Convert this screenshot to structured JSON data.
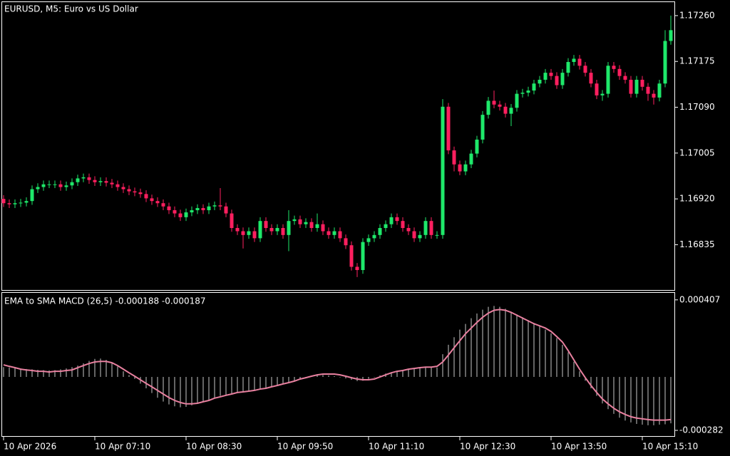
{
  "chart_data": [
    {
      "type": "candlestick",
      "title": "EURUSD, M5:  Euro vs US Dollar",
      "categories": [
        "10 Apr 2026",
        null,
        null,
        null,
        null,
        null,
        null,
        null,
        null,
        null,
        null,
        null,
        null,
        null,
        null,
        null,
        "10 Apr 07:10",
        null,
        null,
        null,
        null,
        null,
        null,
        null,
        null,
        null,
        null,
        null,
        null,
        null,
        null,
        null,
        "10 Apr 08:30",
        null,
        null,
        null,
        null,
        null,
        null,
        null,
        null,
        null,
        null,
        null,
        null,
        null,
        null,
        null,
        "10 Apr 09:50",
        null,
        null,
        null,
        null,
        null,
        null,
        null,
        null,
        null,
        null,
        null,
        null,
        null,
        null,
        null,
        "10 Apr 11:10",
        null,
        null,
        null,
        null,
        null,
        null,
        null,
        null,
        null,
        null,
        null,
        null,
        null,
        null,
        null,
        "10 Apr 12:30",
        null,
        null,
        null,
        null,
        null,
        null,
        null,
        null,
        null,
        null,
        null,
        null,
        null,
        null,
        null,
        "10 Apr 13:50",
        null,
        null,
        null,
        null,
        null,
        null,
        null,
        null,
        null,
        null,
        null,
        null,
        null,
        null,
        null,
        "10 Apr 15:10",
        null,
        null,
        null,
        null,
        null
      ],
      "open": [
        1.1692,
        1.16912,
        1.1691,
        1.16912,
        1.16913,
        1.16916,
        1.16938,
        1.16942,
        1.16947,
        1.16947,
        1.16947,
        1.16942,
        1.16945,
        1.16951,
        1.16958,
        1.1696,
        1.16955,
        1.16951,
        1.16953,
        1.1695,
        1.16947,
        1.16942,
        1.16938,
        1.16934,
        1.16932,
        1.16929,
        1.16921,
        1.16916,
        1.16912,
        1.16906,
        1.16899,
        1.16893,
        1.16886,
        1.16895,
        1.16899,
        1.16903,
        1.16899,
        1.16906,
        1.16908,
        1.16906,
        1.16893,
        1.16866,
        1.1686,
        1.16853,
        1.1686,
        1.16847,
        1.16879,
        1.16866,
        1.1686,
        1.16866,
        1.16853,
        1.16879,
        1.16882,
        1.16873,
        1.16877,
        1.16866,
        1.16873,
        1.1686,
        1.16853,
        1.1686,
        1.16847,
        1.16834,
        1.16794,
        1.16788,
        1.1684,
        1.16847,
        1.16853,
        1.16866,
        1.16873,
        1.16886,
        1.16879,
        1.16866,
        1.1686,
        1.16847,
        1.16853,
        1.16879,
        1.16853,
        1.16853,
        1.17091,
        1.1701,
        1.16984,
        1.16971,
        1.16984,
        1.17004,
        1.1703,
        1.17076,
        1.17102,
        1.17095,
        1.17091,
        1.17078,
        1.17089,
        1.17115,
        1.17117,
        1.17121,
        1.17134,
        1.17141,
        1.17154,
        1.17148,
        1.17131,
        1.17154,
        1.17174,
        1.1718,
        1.17167,
        1.17154,
        1.17134,
        1.17112,
        1.17115,
        1.17167,
        1.17161,
        1.17148,
        1.17141,
        1.17115,
        1.17141,
        1.17128,
        1.17115,
        1.17108,
        1.17134,
        1.17213
      ],
      "high": [
        1.16927,
        1.16919,
        1.16919,
        1.1692,
        1.16923,
        1.16945,
        1.16949,
        1.16954,
        1.16954,
        1.16954,
        1.16954,
        1.16952,
        1.16958,
        1.16965,
        1.16967,
        1.16967,
        1.16962,
        1.1696,
        1.1696,
        1.16957,
        1.16954,
        1.16949,
        1.16945,
        1.16941,
        1.16939,
        1.16936,
        1.16928,
        1.16923,
        1.16919,
        1.16913,
        1.16906,
        1.169,
        1.16902,
        1.16906,
        1.1691,
        1.1691,
        1.16913,
        1.16915,
        1.1694,
        1.16913,
        1.169,
        1.16873,
        1.16867,
        1.16867,
        1.16867,
        1.16886,
        1.16886,
        1.16873,
        1.16873,
        1.16873,
        1.16899,
        1.16889,
        1.16889,
        1.16884,
        1.16884,
        1.16893,
        1.1688,
        1.16867,
        1.16867,
        1.16867,
        1.16854,
        1.16841,
        1.16801,
        1.16847,
        1.16854,
        1.1686,
        1.16873,
        1.1688,
        1.16893,
        1.16893,
        1.16886,
        1.16873,
        1.16867,
        1.1686,
        1.16886,
        1.16886,
        1.1686,
        1.17105,
        1.17098,
        1.17017,
        1.16991,
        1.16991,
        1.17011,
        1.17037,
        1.17083,
        1.17109,
        1.17121,
        1.17102,
        1.17098,
        1.17096,
        1.17122,
        1.17124,
        1.17128,
        1.17141,
        1.17148,
        1.17161,
        1.17161,
        1.17155,
        1.17161,
        1.17181,
        1.17187,
        1.17187,
        1.17174,
        1.17161,
        1.17141,
        1.17122,
        1.17174,
        1.17174,
        1.17168,
        1.17155,
        1.17148,
        1.17148,
        1.17148,
        1.17135,
        1.17122,
        1.17141,
        1.17233,
        1.1726
      ],
      "low": [
        1.16905,
        1.16903,
        1.16903,
        1.16905,
        1.16906,
        1.16909,
        1.16931,
        1.16935,
        1.1694,
        1.1694,
        1.16935,
        1.16935,
        1.16938,
        1.16944,
        1.16951,
        1.16948,
        1.16944,
        1.16944,
        1.16943,
        1.1694,
        1.16935,
        1.16931,
        1.16927,
        1.16925,
        1.16922,
        1.16914,
        1.16909,
        1.16905,
        1.16899,
        1.16892,
        1.16886,
        1.16879,
        1.16879,
        1.16888,
        1.16892,
        1.16892,
        1.16892,
        1.16899,
        1.16899,
        1.16886,
        1.16859,
        1.16853,
        1.16828,
        1.16846,
        1.1684,
        1.1684,
        1.16859,
        1.16853,
        1.16853,
        1.16846,
        1.16823,
        1.16872,
        1.16866,
        1.16866,
        1.16859,
        1.16859,
        1.16853,
        1.16846,
        1.16846,
        1.1684,
        1.16827,
        1.16787,
        1.16775,
        1.16781,
        1.16833,
        1.1684,
        1.16846,
        1.16859,
        1.16866,
        1.16872,
        1.16859,
        1.16853,
        1.1684,
        1.1684,
        1.16846,
        1.16846,
        1.16846,
        1.16846,
        1.17003,
        1.16971,
        1.16964,
        1.16964,
        1.16977,
        1.16997,
        1.17023,
        1.17069,
        1.17088,
        1.17084,
        1.17071,
        1.17055,
        1.17082,
        1.17108,
        1.1711,
        1.17114,
        1.17127,
        1.17134,
        1.17141,
        1.17124,
        1.17124,
        1.17147,
        1.17167,
        1.1716,
        1.17147,
        1.17127,
        1.17105,
        1.17102,
        1.17108,
        1.17154,
        1.17141,
        1.17134,
        1.17108,
        1.17108,
        1.17121,
        1.17102,
        1.17095,
        1.17101,
        1.17127,
        1.17206
      ],
      "close": [
        1.16912,
        1.1691,
        1.16912,
        1.16913,
        1.16916,
        1.16938,
        1.16942,
        1.16947,
        1.16947,
        1.16947,
        1.16942,
        1.16945,
        1.16951,
        1.16958,
        1.1696,
        1.16955,
        1.16951,
        1.16953,
        1.1695,
        1.16947,
        1.16942,
        1.16938,
        1.16934,
        1.16932,
        1.16929,
        1.16921,
        1.16916,
        1.16912,
        1.16906,
        1.16899,
        1.16893,
        1.16886,
        1.16895,
        1.16899,
        1.16903,
        1.16899,
        1.16906,
        1.16908,
        1.16906,
        1.16893,
        1.16866,
        1.1686,
        1.16853,
        1.1686,
        1.16847,
        1.16879,
        1.16866,
        1.1686,
        1.16866,
        1.16853,
        1.16879,
        1.16882,
        1.16873,
        1.16877,
        1.16866,
        1.16873,
        1.1686,
        1.16853,
        1.1686,
        1.16847,
        1.16834,
        1.16794,
        1.16788,
        1.1684,
        1.16847,
        1.16853,
        1.16866,
        1.16873,
        1.16886,
        1.16879,
        1.16866,
        1.1686,
        1.16847,
        1.16853,
        1.16879,
        1.16853,
        1.16853,
        1.17091,
        1.1701,
        1.16984,
        1.16971,
        1.16984,
        1.17004,
        1.1703,
        1.17076,
        1.17102,
        1.17095,
        1.17091,
        1.17078,
        1.17089,
        1.17115,
        1.17117,
        1.17121,
        1.17134,
        1.17141,
        1.17154,
        1.17148,
        1.17131,
        1.17154,
        1.17174,
        1.1718,
        1.17167,
        1.17154,
        1.17134,
        1.17112,
        1.17115,
        1.17167,
        1.17161,
        1.17148,
        1.17141,
        1.17115,
        1.17141,
        1.17128,
        1.17115,
        1.17108,
        1.17134,
        1.17213,
        1.17233
      ],
      "up_color": "#1ee86a",
      "down_color": "#ff1f5f",
      "ylim": [
        1.16751,
        1.17285
      ],
      "yticks": [
        {
          "value": 1.1726,
          "label": "1.17260"
        },
        1.17175,
        {
          "value": 1.1709,
          "label": "1.17090"
        },
        1.17005,
        {
          "value": 1.1692,
          "label": "1.16920"
        },
        1.16835
      ]
    },
    {
      "type": "macd",
      "title": "EMA to SMA MACD (26,5) -0.000188 -0.000187",
      "ylim": [
        -0.000312,
        0.000444
      ],
      "yticks": [
        0.000407,
        -0.000282
      ],
      "series": [
        {
          "style": "histogram",
          "color": "#c8c8c8",
          "values": [
            5.2e-05,
            5e-05,
            4.8e-05,
            4.5e-05,
            4.2e-05,
            4e-05,
            3.8e-05,
            3.6e-05,
            3.5e-05,
            3.6e-05,
            4e-05,
            4.5e-05,
            5.2e-05,
            6e-05,
            7.2e-05,
            8.5e-05,
            9.5e-05,
            9.7e-05,
            9e-05,
            7.5e-05,
            5.5e-05,
            3e-05,
            1e-05,
            -1e-05,
            -3.5e-05,
            -6e-05,
            -8.5e-05,
            -0.00011,
            -0.00013,
            -0.000145,
            -0.000155,
            -0.00016,
            -0.000158,
            -0.00015,
            -0.00014,
            -0.00013,
            -0.00012,
            -0.00011,
            -0.0001,
            -9.5e-05,
            -9e-05,
            -8.5e-05,
            -8.2e-05,
            -7.8e-05,
            -7.2e-05,
            -6.5e-05,
            -5.8e-05,
            -5.2e-05,
            -4.5e-05,
            -3.8e-05,
            -3e-05,
            -2.2e-05,
            -1.2e-05,
            -5e-06,
            3e-06,
            8e-06,
            1e-05,
            8e-06,
            4e-06,
            -2e-06,
            -8e-06,
            -1.5e-05,
            -2.2e-05,
            -2e-05,
            -1e-05,
            -2e-06,
            8e-06,
            1.8e-05,
            2.5e-05,
            3.2e-05,
            3.8e-05,
            4.2e-05,
            4.5e-05,
            4.8e-05,
            5e-05,
            5.2e-05,
            5e-05,
            0.00012,
            0.00017,
            0.00021,
            0.00025,
            0.00028,
            0.00031,
            0.000335,
            0.000355,
            0.00037,
            0.000375,
            0.00037,
            0.00036,
            0.000345,
            0.00033,
            0.000315,
            0.0003,
            0.000285,
            0.00027,
            0.00025,
            0.00023,
            0.000205,
            0.00017,
            0.00013,
            8e-05,
            3e-05,
            -2e-05,
            -6e-05,
            -0.0001,
            -0.00014,
            -0.00017,
            -0.000195,
            -0.000215,
            -0.00023,
            -0.00024,
            -0.000248,
            -0.000252,
            -0.000255,
            -0.000255,
            -0.000252,
            -0.00025,
            -0.000245
          ]
        },
        {
          "style": "line",
          "color": "#e8809f",
          "values": [
            6.4e-05,
            5.6e-05,
            4.9e-05,
            4.1e-05,
            3.7e-05,
            3.4e-05,
            3e-05,
            3e-05,
            2.6e-05,
            3e-05,
            3e-05,
            3.4e-05,
            3.7e-05,
            4.9e-05,
            6e-05,
            7.1e-05,
            7.9e-05,
            8.2e-05,
            8.2e-05,
            7.5e-05,
            6e-05,
            4.1e-05,
            2.2e-05,
            4e-06,
            -1.5e-05,
            -3.4e-05,
            -5.2e-05,
            -7.1e-05,
            -9e-05,
            -0.000109,
            -0.000124,
            -0.000135,
            -0.000142,
            -0.000142,
            -0.000139,
            -0.000131,
            -0.000124,
            -0.000112,
            -0.000105,
            -9.7e-05,
            -9e-05,
            -8.2e-05,
            -7.9e-05,
            -7.5e-05,
            -7.1e-05,
            -6.4e-05,
            -6e-05,
            -5.2e-05,
            -4.5e-05,
            -3.7e-05,
            -3e-05,
            -2.2e-05,
            -1.1e-05,
            -4e-06,
            4e-06,
            1.1e-05,
            1.5e-05,
            1.5e-05,
            1.5e-05,
            1.1e-05,
            4e-06,
            -4e-06,
            -1.1e-05,
            -1.5e-05,
            -1.5e-05,
            -1.1e-05,
            0,
            1.1e-05,
            2.2e-05,
            3e-05,
            3.4e-05,
            4.1e-05,
            4.5e-05,
            4.9e-05,
            5.2e-05,
            5.2e-05,
            5.6e-05,
            7.9e-05,
            0.000116,
            0.000154,
            0.000191,
            0.000228,
            0.000258,
            0.000288,
            0.000315,
            0.000337,
            0.000352,
            0.000356,
            0.000352,
            0.000341,
            0.000326,
            0.000311,
            0.000296,
            0.000281,
            0.00027,
            0.000258,
            0.00024,
            0.000213,
            0.000184,
            0.000139,
            9e-05,
            4.1e-05,
            -4e-06,
            -4.5e-05,
            -8.2e-05,
            -0.000116,
            -0.000142,
            -0.000165,
            -0.000184,
            -0.000198,
            -0.00021,
            -0.000217,
            -0.000221,
            -0.000225,
            -0.000228,
            -0.000228,
            -0.000228,
            -0.000225
          ]
        }
      ]
    }
  ]
}
